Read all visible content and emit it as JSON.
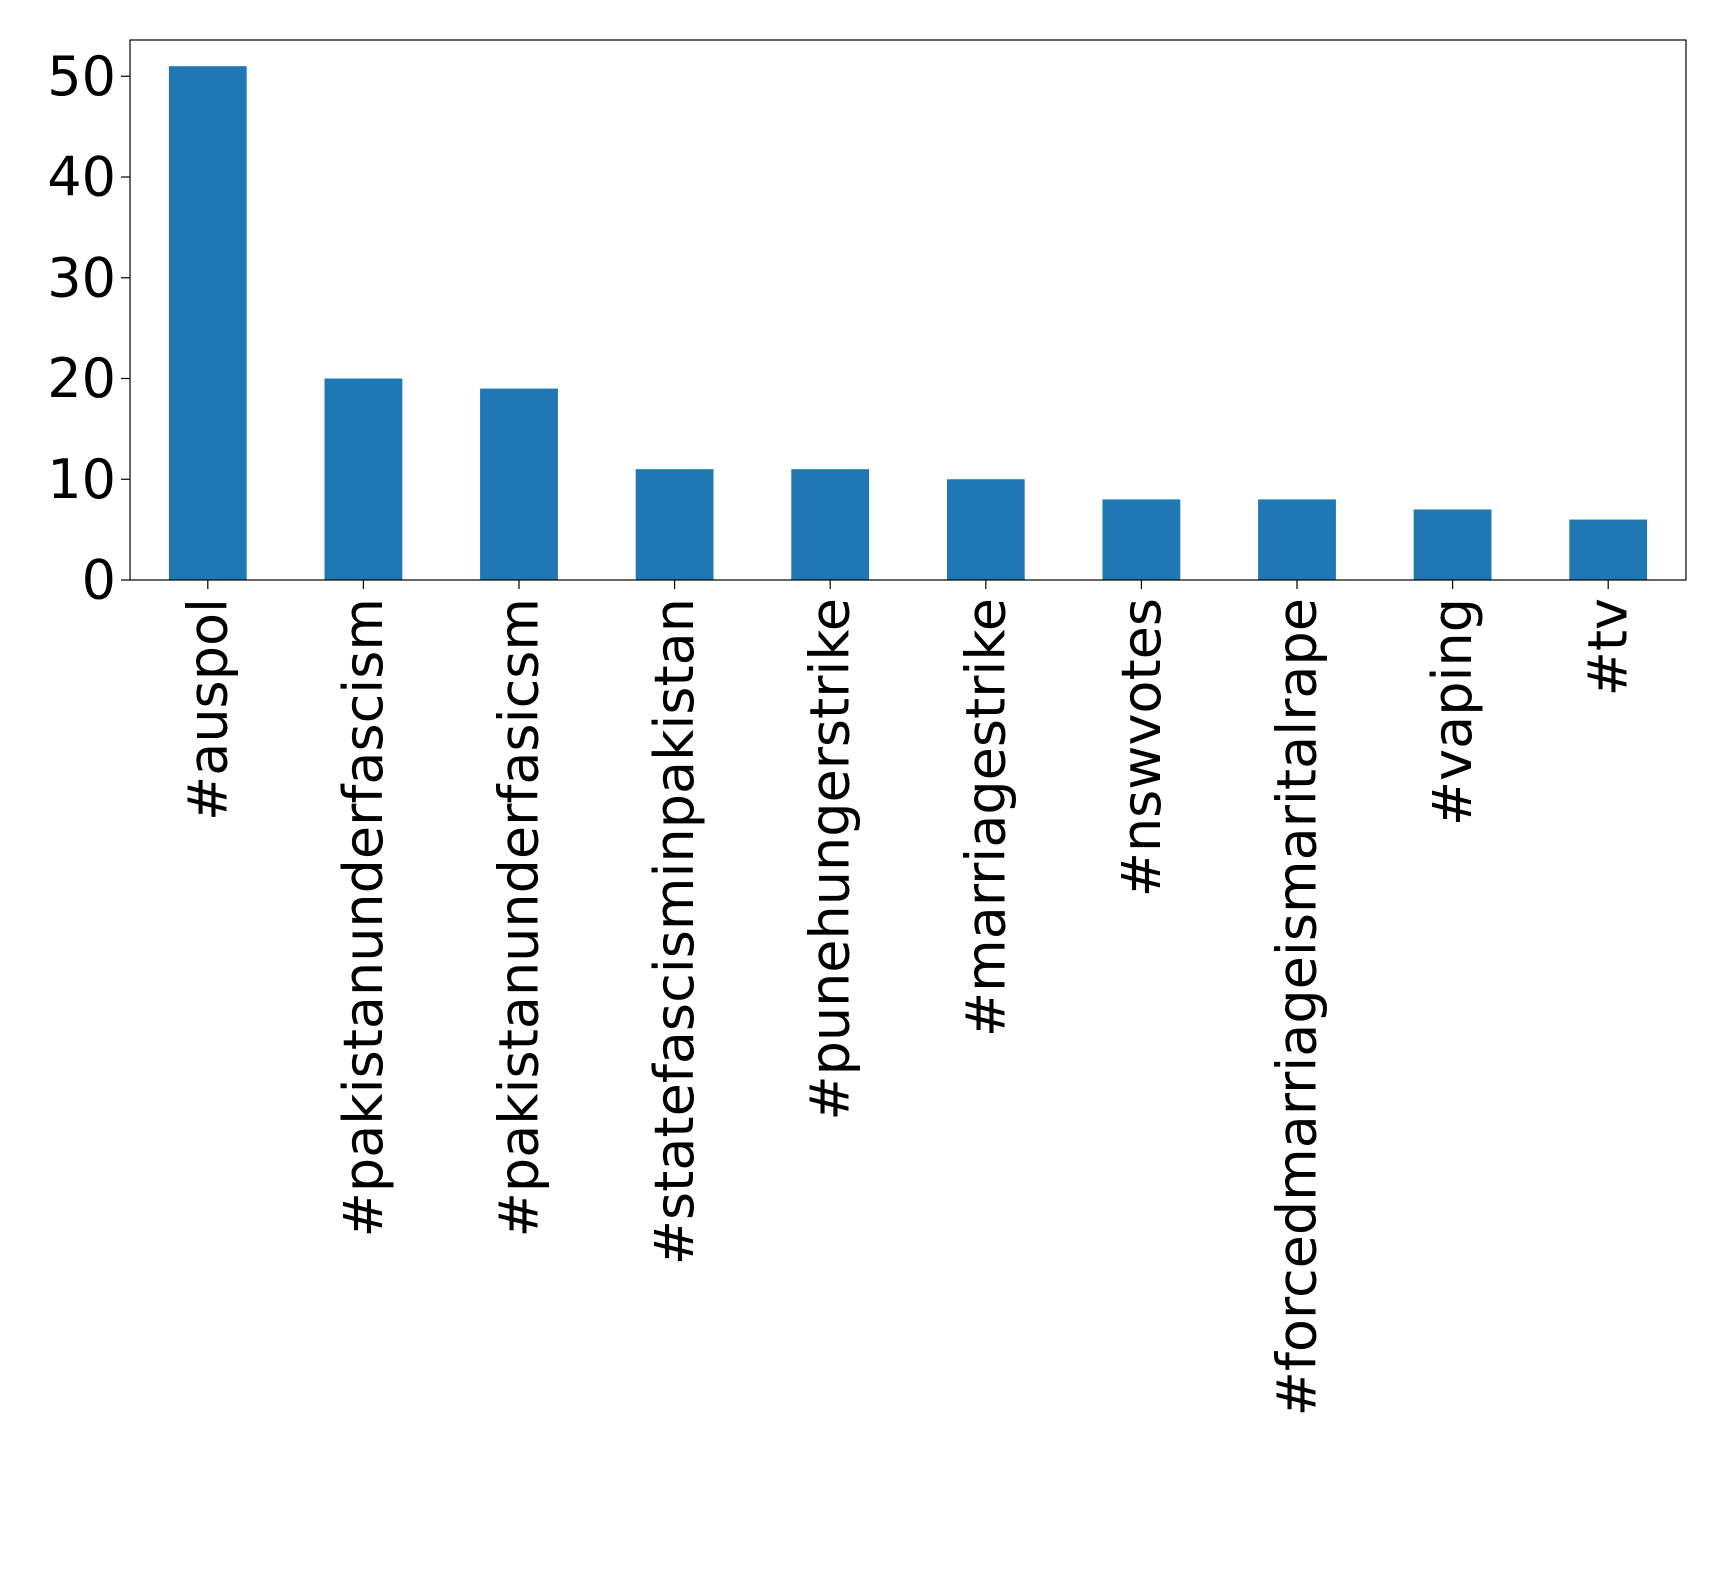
{
  "chart_data": {
    "type": "bar",
    "title": "",
    "xlabel": "",
    "ylabel": "",
    "categories": [
      "#auspol",
      "#pakistanunderfascism",
      "#pakistanunderfasicsm",
      "#statefascisminpakistan",
      "#punehungerstrike",
      "#marriagestrike",
      "#nswvotes",
      "#forcedmarriageismaritalrape",
      "#vaping",
      "#tv"
    ],
    "values": [
      51,
      20,
      19,
      11,
      11,
      10,
      8,
      8,
      7,
      6
    ],
    "ylim": [
      0,
      53.6
    ],
    "yticks": [
      0,
      10,
      20,
      30,
      40,
      50
    ],
    "bar_color": "#1f77b4",
    "grid": false,
    "legend": "none"
  }
}
